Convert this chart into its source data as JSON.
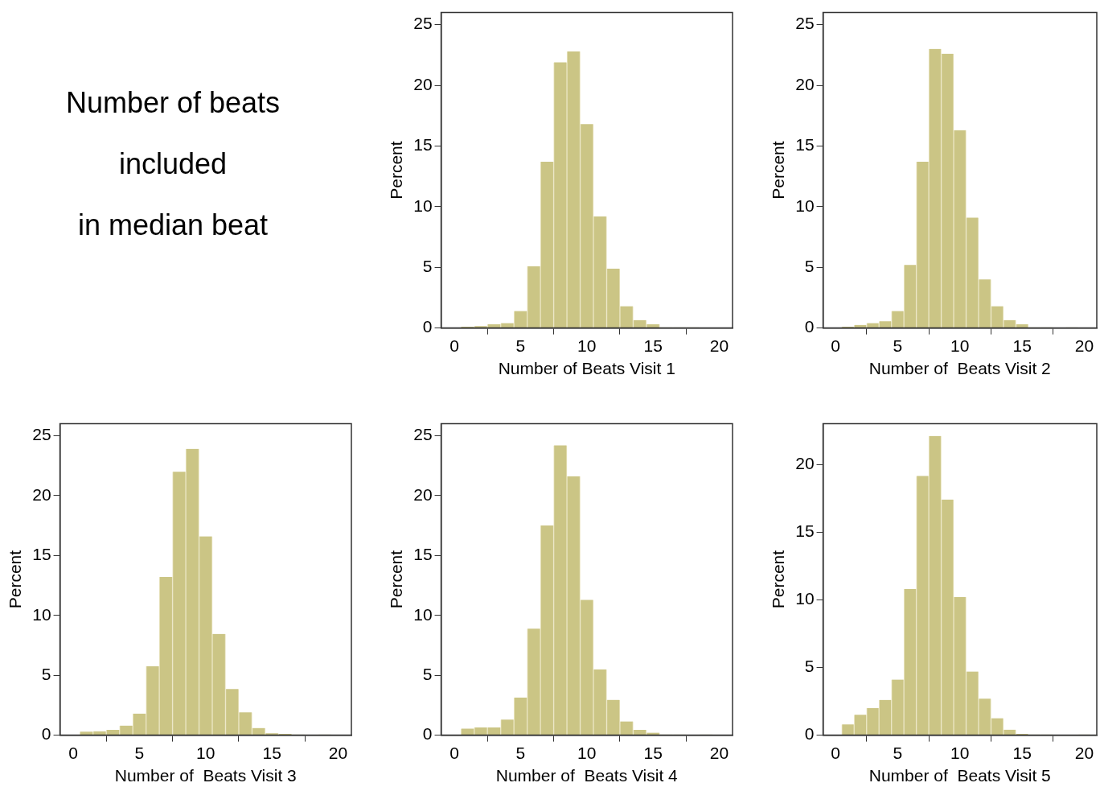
{
  "chart_data": [
    {
      "type": "other",
      "title": "Number of beats\nincluded\nin median beat"
    },
    {
      "type": "histogram",
      "xlabel": "Number of Beats Visit 1",
      "ylabel": "Percent",
      "color": "#cbc585",
      "grid": false,
      "bins": [
        0.5,
        1.5,
        2.5,
        3.5,
        4.5,
        5.5,
        6.5,
        7.5,
        8.5,
        9.5,
        10.5,
        11.5,
        12.5,
        13.5,
        14.5,
        15.5,
        16.5,
        17.5,
        18.5
      ],
      "values": [
        0.1,
        0.15,
        0.3,
        0.4,
        1.4,
        5.1,
        13.7,
        21.9,
        22.8,
        16.8,
        9.2,
        4.9,
        1.8,
        0.65,
        0.3,
        0.05,
        0.05,
        0.05
      ],
      "xlim": [
        -1,
        21
      ],
      "xticks": [
        0,
        5,
        10,
        15,
        20
      ],
      "ylim": [
        0,
        26
      ],
      "yticks": [
        0,
        5,
        10,
        15,
        20,
        25
      ]
    },
    {
      "type": "histogram",
      "xlabel": "Number of  Beats Visit 2",
      "ylabel": "Percent",
      "color": "#cbc585",
      "grid": false,
      "bins": [
        0.5,
        1.5,
        2.5,
        3.5,
        4.5,
        5.5,
        6.5,
        7.5,
        8.5,
        9.5,
        10.5,
        11.5,
        12.5,
        13.5,
        14.5,
        15.5,
        16.5,
        17.5,
        18.5,
        19.5
      ],
      "values": [
        0.1,
        0.25,
        0.4,
        0.55,
        1.4,
        5.2,
        13.7,
        23.0,
        22.6,
        16.3,
        9.1,
        4.0,
        1.8,
        0.65,
        0.3,
        0.05,
        0.05,
        0,
        0.05
      ],
      "xlim": [
        -1,
        21
      ],
      "xticks": [
        0,
        5,
        10,
        15,
        20
      ],
      "ylim": [
        0,
        26
      ],
      "yticks": [
        0,
        5,
        10,
        15,
        20,
        25
      ]
    },
    {
      "type": "histogram",
      "xlabel": "Number of  Beats Visit 3",
      "ylabel": "Percent",
      "color": "#cbc585",
      "grid": false,
      "bins": [
        0.5,
        1.5,
        2.5,
        3.5,
        4.5,
        5.5,
        6.5,
        7.5,
        8.5,
        9.5,
        10.5,
        11.5,
        12.5,
        13.5,
        14.5,
        15.5,
        16.5,
        17.5,
        18.5,
        19.5
      ],
      "values": [
        0.3,
        0.33,
        0.45,
        0.8,
        1.8,
        5.75,
        13.2,
        22.0,
        23.9,
        16.6,
        8.45,
        3.85,
        1.9,
        0.6,
        0.15,
        0.1,
        0.05,
        0,
        0.05
      ],
      "xlim": [
        -1,
        21
      ],
      "xticks": [
        0,
        5,
        10,
        15,
        20
      ],
      "ylim": [
        0,
        26
      ],
      "yticks": [
        0,
        5,
        10,
        15,
        20,
        25
      ]
    },
    {
      "type": "histogram",
      "xlabel": "Number of  Beats Visit 4",
      "ylabel": "Percent",
      "color": "#cbc585",
      "grid": false,
      "bins": [
        0.5,
        1.5,
        2.5,
        3.5,
        4.5,
        5.5,
        6.5,
        7.5,
        8.5,
        9.5,
        10.5,
        11.5,
        12.5,
        13.5,
        14.5,
        15.5,
        16.5,
        17.5,
        18.5,
        19.5
      ],
      "values": [
        0.55,
        0.65,
        0.65,
        1.3,
        3.15,
        8.9,
        17.5,
        24.2,
        21.6,
        11.3,
        5.5,
        2.95,
        1.15,
        0.45,
        0.2,
        0.05,
        0.05,
        0,
        0.05
      ],
      "xlim": [
        -1,
        21
      ],
      "xticks": [
        0,
        5,
        10,
        15,
        20
      ],
      "ylim": [
        0,
        26
      ],
      "yticks": [
        0,
        5,
        10,
        15,
        20,
        25
      ]
    },
    {
      "type": "histogram",
      "xlabel": "Number of  Beats Visit 5",
      "ylabel": "Percent",
      "color": "#cbc585",
      "grid": false,
      "bins": [
        0.5,
        1.5,
        2.5,
        3.5,
        4.5,
        5.5,
        6.5,
        7.5,
        8.5,
        9.5,
        10.5,
        11.5,
        12.5,
        13.5,
        14.5,
        15.5,
        16.5,
        17.5,
        18.5,
        19.5,
        20.5
      ],
      "values": [
        0.8,
        1.5,
        2.0,
        2.6,
        4.1,
        10.8,
        19.15,
        22.1,
        17.4,
        10.2,
        4.7,
        2.7,
        1.25,
        0.4,
        0.1,
        0.05,
        0.05,
        0,
        0,
        0.05
      ],
      "xlim": [
        -1,
        21
      ],
      "xticks": [
        0,
        5,
        10,
        15,
        20
      ],
      "ylim": [
        0,
        23
      ],
      "yticks": [
        0,
        5,
        10,
        15,
        20
      ]
    }
  ]
}
